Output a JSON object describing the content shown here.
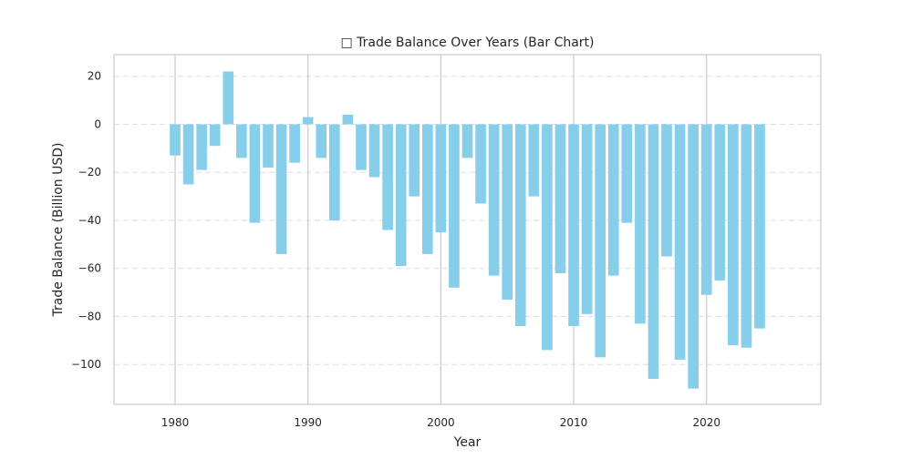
{
  "chart_data": {
    "type": "bar",
    "title": "□ Trade Balance Over Years (Bar Chart)",
    "xlabel": "Year",
    "ylabel": "Trade Balance (Billion USD)",
    "x": [
      1980,
      1981,
      1982,
      1983,
      1984,
      1985,
      1986,
      1987,
      1988,
      1989,
      1990,
      1991,
      1992,
      1993,
      1994,
      1995,
      1996,
      1997,
      1998,
      1999,
      2000,
      2001,
      2002,
      2003,
      2004,
      2005,
      2006,
      2007,
      2008,
      2009,
      2010,
      2011,
      2012,
      2013,
      2014,
      2015,
      2016,
      2017,
      2018,
      2019,
      2020,
      2021,
      2022,
      2023,
      2024
    ],
    "values": [
      -13,
      -25,
      -19,
      -9,
      22,
      -14,
      -41,
      -18,
      -54,
      -16,
      3,
      -14,
      -40,
      4,
      -19,
      -22,
      -44,
      -59,
      -30,
      -54,
      -45,
      -68,
      -14,
      -33,
      -63,
      -73,
      -84,
      -30,
      -94,
      -62,
      -84,
      -79,
      -97,
      -63,
      -41,
      -83,
      -106,
      -55,
      -98,
      -110,
      -71,
      -65,
      -92,
      -93,
      -85
    ],
    "color": "#87ceeb",
    "xlim": [
      1975.4,
      2028.6
    ],
    "ylim": [
      -116.6,
      29
    ],
    "x_ticks": [
      "1980",
      "1990",
      "2000",
      "2010",
      "2020"
    ],
    "y_ticks": [
      "20",
      "0",
      "−20",
      "−40",
      "−60",
      "−80",
      "−100"
    ],
    "grid": {
      "x": "solid",
      "y": "dashed"
    }
  }
}
